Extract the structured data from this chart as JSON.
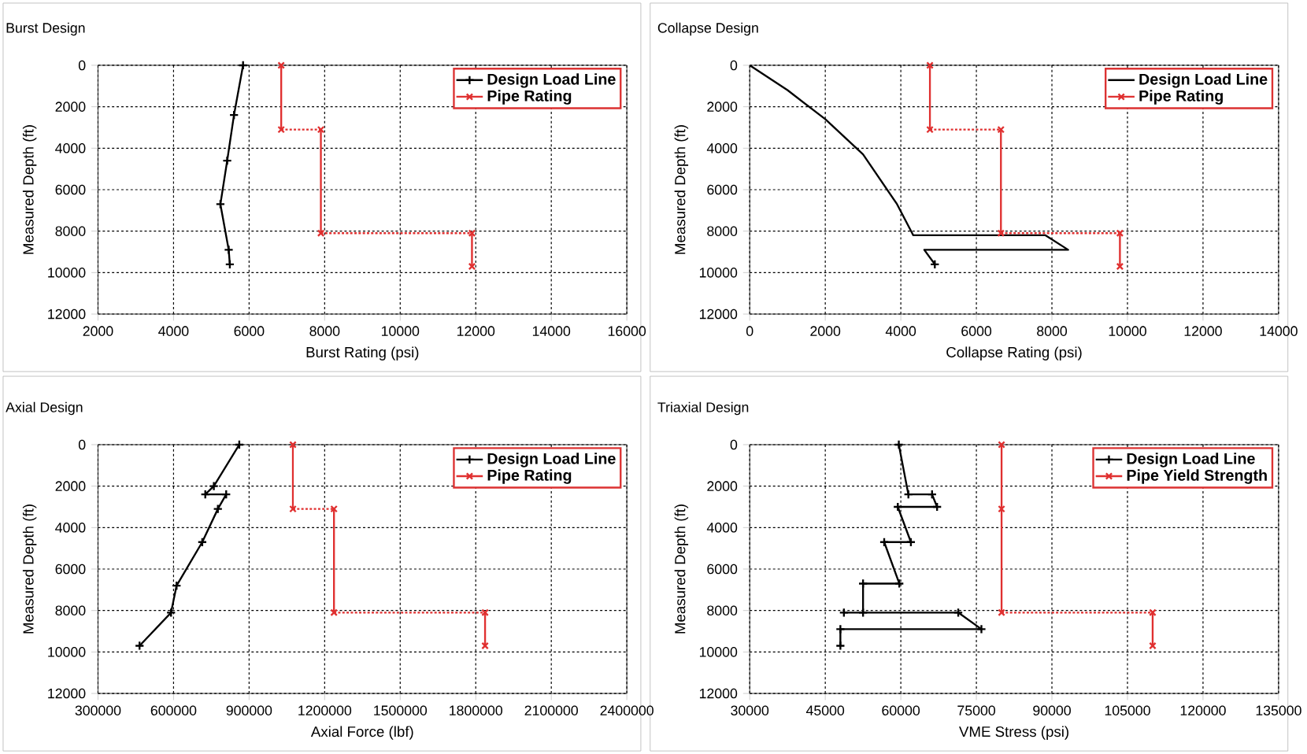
{
  "chart_data": [
    {
      "type": "line",
      "title": "Burst Design",
      "xlabel": "Burst Rating (psi)",
      "ylabel": "Measured Depth (ft)",
      "xlim": [
        2000,
        16000
      ],
      "xticks": [
        2000,
        4000,
        6000,
        8000,
        10000,
        12000,
        14000,
        16000
      ],
      "ylim": [
        12000,
        0
      ],
      "yticks": [
        0,
        2000,
        4000,
        6000,
        8000,
        10000,
        12000
      ],
      "grid": true,
      "legend": "top right",
      "series": [
        {
          "name": "Design Load Line",
          "color": "#000000",
          "marker": "plus",
          "x": [
            5840,
            5600,
            5420,
            5240,
            5460,
            5490
          ],
          "values": [
            0,
            2400,
            4600,
            6700,
            8900,
            9600
          ]
        },
        {
          "name": "Pipe Rating",
          "color": "#e03030",
          "marker": "cross",
          "x": [
            6850,
            6850
          ],
          "values": [
            0,
            3100
          ]
        },
        {
          "color": "#e03030",
          "marker": "cross",
          "x": [
            7900,
            7900
          ],
          "values": [
            3100,
            8100
          ]
        },
        {
          "color": "#e03030",
          "marker": "cross",
          "x": [
            11900,
            11900
          ],
          "values": [
            8100,
            9700
          ]
        },
        {
          "color": "#e03030",
          "marker": "none",
          "line_style": "dotted",
          "x": [
            6850,
            7900
          ],
          "values": [
            3100,
            3100
          ]
        },
        {
          "color": "#e03030",
          "marker": "none",
          "line_style": "dotted",
          "x": [
            7900,
            11900
          ],
          "values": [
            8100,
            8100
          ]
        }
      ]
    },
    {
      "type": "line",
      "title": "Collapse Design",
      "xlabel": "Collapse Rating (psi)",
      "ylabel": "Measured Depth (ft)",
      "xlim": [
        0,
        14000
      ],
      "xticks": [
        0,
        2000,
        4000,
        6000,
        8000,
        10000,
        12000,
        14000
      ],
      "ylim": [
        12000,
        0
      ],
      "yticks": [
        0,
        2000,
        4000,
        6000,
        8000,
        10000,
        12000
      ],
      "grid": true,
      "legend": "top right",
      "series": [
        {
          "name": "Design Load Line",
          "color": "#000000",
          "marker": "none",
          "x": [
            0,
            1000,
            2000,
            3000,
            3900,
            4330,
            7830,
            8430,
            4620,
            4900
          ],
          "values": [
            0,
            1200,
            2600,
            4300,
            6700,
            8200,
            8200,
            8900,
            8900,
            9600
          ]
        },
        {
          "color": "#000000",
          "marker": "plus",
          "x": [
            4900
          ],
          "values": [
            9600
          ]
        },
        {
          "name": "Pipe Rating",
          "color": "#e03030",
          "marker": "cross",
          "x": [
            4770,
            4770
          ],
          "values": [
            0,
            3100
          ]
        },
        {
          "color": "#e03030",
          "marker": "cross",
          "x": [
            6650,
            6650
          ],
          "values": [
            3100,
            8100
          ]
        },
        {
          "color": "#e03030",
          "marker": "cross",
          "x": [
            9800,
            9800
          ],
          "values": [
            8100,
            9700
          ]
        },
        {
          "color": "#e03030",
          "marker": "none",
          "line_style": "dotted",
          "x": [
            4770,
            6650
          ],
          "values": [
            3100,
            3100
          ]
        },
        {
          "color": "#e03030",
          "marker": "none",
          "line_style": "dotted",
          "x": [
            6650,
            9800
          ],
          "values": [
            8100,
            8100
          ]
        }
      ]
    },
    {
      "type": "line",
      "title": "Axial Design",
      "xlabel": "Axial Force (lbf)",
      "ylabel": "Measured Depth (ft)",
      "xlim": [
        300000,
        2400000
      ],
      "xticks": [
        300000,
        600000,
        900000,
        1200000,
        1500000,
        1800000,
        2100000,
        2400000
      ],
      "ylim": [
        12000,
        0
      ],
      "yticks": [
        0,
        2000,
        4000,
        6000,
        8000,
        10000,
        12000
      ],
      "grid": true,
      "legend": "top right",
      "series": [
        {
          "name": "Design Load Line",
          "color": "#000000",
          "marker": "plus",
          "x": [
            861000,
            760000,
            726000,
            809000,
            776000,
            714000,
            612000,
            590000,
            465000
          ],
          "values": [
            0,
            2000,
            2400,
            2400,
            3100,
            4700,
            6800,
            8100,
            9700
          ]
        },
        {
          "name": "Pipe Rating",
          "color": "#e03030",
          "marker": "cross",
          "x": [
            1074000,
            1074000
          ],
          "values": [
            0,
            3100
          ]
        },
        {
          "color": "#e03030",
          "marker": "cross",
          "x": [
            1237000,
            1237000
          ],
          "values": [
            3100,
            8100
          ]
        },
        {
          "color": "#e03030",
          "marker": "cross",
          "x": [
            1837000,
            1837000
          ],
          "values": [
            8100,
            9700
          ]
        },
        {
          "color": "#e03030",
          "marker": "none",
          "line_style": "dotted",
          "x": [
            1074000,
            1237000
          ],
          "values": [
            3100,
            3100
          ]
        },
        {
          "color": "#e03030",
          "marker": "none",
          "line_style": "dotted",
          "x": [
            1237000,
            1837000
          ],
          "values": [
            8100,
            8100
          ]
        }
      ]
    },
    {
      "type": "line",
      "title": "Triaxial Design",
      "xlabel": "VME Stress (psi)",
      "ylabel": "Measured Depth (ft)",
      "xlim": [
        30000,
        135000
      ],
      "xticks": [
        30000,
        45000,
        60000,
        75000,
        90000,
        105000,
        120000,
        135000
      ],
      "ylim": [
        12000,
        0
      ],
      "yticks": [
        0,
        2000,
        4000,
        6000,
        8000,
        10000,
        12000
      ],
      "grid": true,
      "legend": "top right",
      "series": [
        {
          "name": "Design Load Line",
          "color": "#000000",
          "marker": "plus",
          "x": [
            59600,
            61500,
            66200,
            67200,
            59400,
            62000,
            56700,
            59700,
            52500,
            52500,
            48700,
            71400,
            76000,
            48000,
            48000
          ],
          "values": [
            0,
            2400,
            2400,
            3000,
            3000,
            4700,
            4700,
            6700,
            6700,
            8100,
            8100,
            8100,
            8900,
            8900,
            9700
          ]
        },
        {
          "name": "Pipe Yield Strength",
          "color": "#e03030",
          "marker": "cross",
          "x": [
            80000,
            80000,
            80000
          ],
          "values": [
            0,
            3100,
            8100
          ]
        },
        {
          "color": "#e03030",
          "marker": "cross",
          "x": [
            110000,
            110000
          ],
          "values": [
            8100,
            9700
          ]
        },
        {
          "color": "#e03030",
          "marker": "none",
          "line_style": "dotted",
          "x": [
            80000,
            110000
          ],
          "values": [
            8100,
            8100
          ]
        }
      ]
    }
  ]
}
